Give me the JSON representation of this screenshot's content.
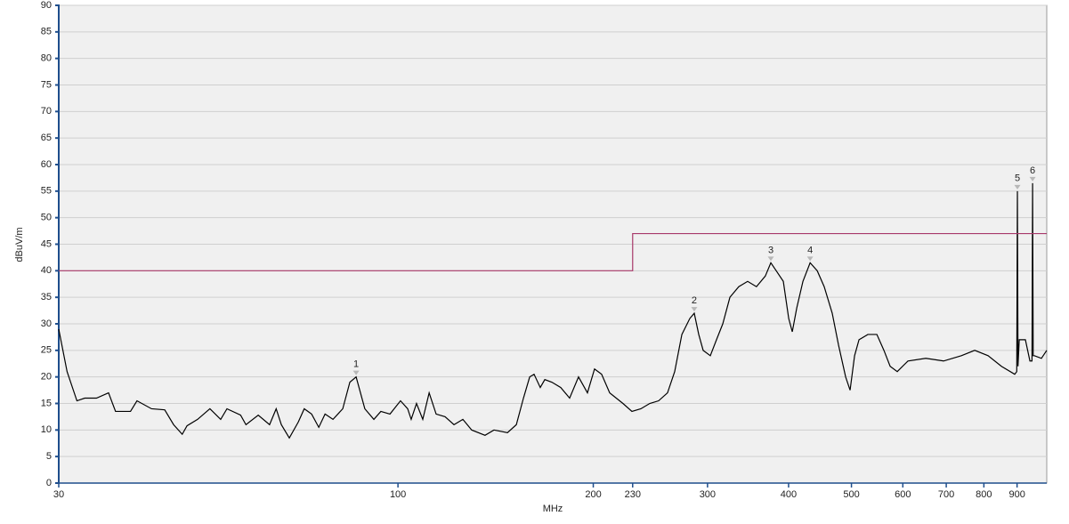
{
  "chart_data": {
    "type": "line",
    "xlabel": "MHz",
    "ylabel": "dBuV/m",
    "xscale": "log",
    "xlim": [
      30,
      1000
    ],
    "ylim": [
      0,
      90
    ],
    "xticks": [
      30,
      100,
      200,
      230,
      300,
      400,
      500,
      600,
      700,
      800,
      900
    ],
    "yticks": [
      0,
      5,
      10,
      15,
      20,
      25,
      30,
      35,
      40,
      45,
      50,
      55,
      60,
      65,
      70,
      75,
      80,
      85,
      90
    ],
    "grid": true,
    "series": [
      {
        "color": "#000000",
        "x": [
          30,
          30.9,
          32.0,
          32.9,
          34.3,
          35.8,
          36.7,
          38.7,
          39.6,
          41.7,
          43.7,
          45.1,
          46.5,
          47.3,
          49.1,
          51.3,
          53.3,
          54.5,
          57.2,
          58.3,
          60.9,
          63.4,
          64.9,
          66.1,
          68.0,
          70.2,
          71.7,
          73.6,
          75.5,
          77.2,
          79.4,
          82.2,
          84.3,
          86.2,
          88.9,
          91.8,
          94.1,
          97.2,
          100.9,
          103.5,
          104.8,
          106.8,
          109.2,
          111.7,
          114.5,
          118.2,
          122.0,
          125.9,
          129.9,
          136.2,
          140.6,
          147.5,
          152.2,
          156.1,
          159.6,
          162.1,
          165.7,
          168.4,
          172.7,
          178.2,
          183.9,
          189.8,
          195.9,
          200.9,
          206.0,
          212.0,
          222.2,
          229.4,
          236.8,
          244.4,
          252.2,
          260.3,
          267.0,
          273.9,
          281.7,
          286.2,
          290.8,
          295.4,
          303.0,
          309.7,
          316.7,
          324.8,
          335.2,
          345.9,
          356.9,
          368.3,
          375.6,
          382.8,
          392.6,
          400.2,
          405.3,
          411.8,
          420.9,
          431.8,
          442.8,
          453.9,
          467.0,
          477.6,
          489.8,
          497.6,
          505.6,
          513.6,
          530.0,
          547.2,
          561.1,
          573.6,
          588.3,
          611.0,
          651.0,
          693.4,
          738.6,
          774.4,
          812.0,
          851.4,
          892.5,
          899.0,
          901.1,
          903.0,
          907.0,
          927.0,
          942.0,
          949.0,
          951.0,
          953.0,
          957.0,
          981.3,
          1000
        ],
        "values": [
          29,
          21,
          15.5,
          16,
          16,
          17,
          13.5,
          13.5,
          15.5,
          14,
          13.8,
          11,
          9.2,
          10.8,
          12,
          14,
          12,
          14,
          12.8,
          11,
          12.8,
          11,
          14,
          11,
          8.5,
          11.5,
          14,
          13,
          10.5,
          13,
          12,
          14,
          19,
          20,
          14,
          12,
          13.5,
          13,
          15.5,
          14,
          12,
          15,
          12,
          17,
          13,
          12.5,
          11,
          12,
          10,
          9,
          10,
          9.5,
          11,
          16,
          20,
          20.5,
          18,
          19.5,
          19,
          18,
          16,
          20,
          17,
          21.5,
          20.5,
          17,
          15,
          13.5,
          14,
          15,
          15.5,
          17,
          21,
          28,
          31,
          32,
          28,
          25,
          24,
          27,
          30,
          35,
          37,
          38,
          37,
          39,
          41.5,
          40,
          38,
          31,
          28.5,
          33,
          38,
          41.5,
          40,
          37,
          32,
          26,
          20,
          17.5,
          24,
          27,
          28,
          28,
          25,
          22,
          21,
          23,
          23.5,
          23,
          24,
          25,
          24,
          22,
          20.5,
          21,
          55,
          22,
          27,
          27,
          23,
          23,
          56.5,
          24,
          24,
          23.5,
          25
        ]
      },
      {
        "color": "#a8386a",
        "x": [
          30,
          230,
          230,
          1000
        ],
        "values": [
          40,
          40,
          47,
          47
        ]
      }
    ],
    "markers": [
      {
        "label": "1",
        "x": 86.2,
        "y": 20
      },
      {
        "label": "2",
        "x": 286.2,
        "y": 32
      },
      {
        "label": "3",
        "x": 375.6,
        "y": 41.5
      },
      {
        "label": "4",
        "x": 431.8,
        "y": 41.5
      },
      {
        "label": "5",
        "x": 901.1,
        "y": 55
      },
      {
        "label": "6",
        "x": 951.0,
        "y": 56.5
      }
    ]
  }
}
